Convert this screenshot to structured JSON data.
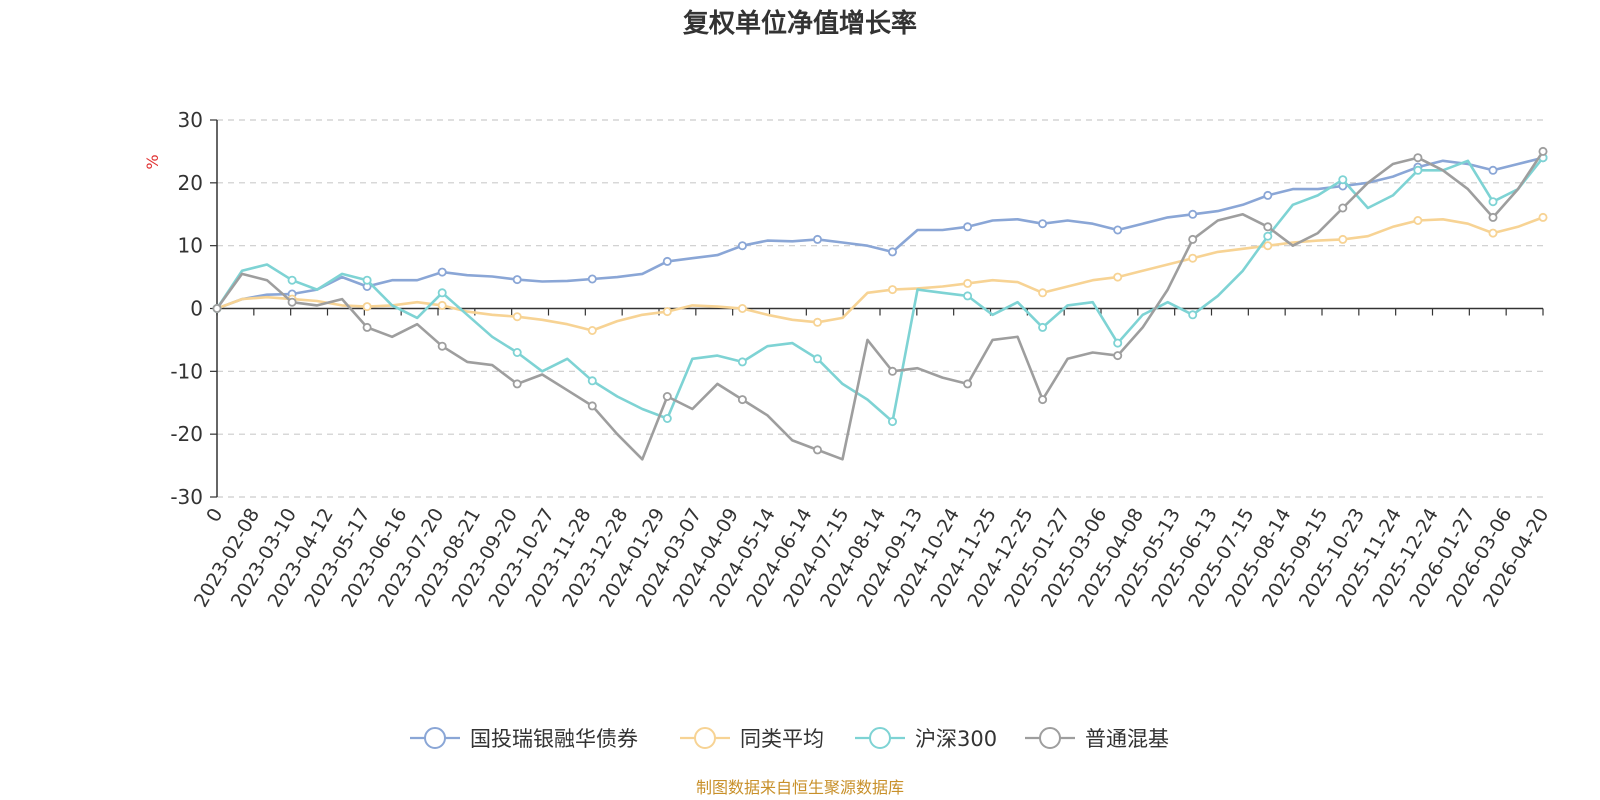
{
  "chart_data": {
    "type": "line",
    "title": "复权单位净值增长率",
    "ylabel": "%",
    "ylim": [
      -30,
      30
    ],
    "yticks": [
      30,
      20,
      10,
      0,
      -10,
      -20,
      -30
    ],
    "x_labels": [
      "0",
      "2023-02-08",
      "2023-03-10",
      "2023-04-12",
      "2023-05-17",
      "2023-06-16",
      "2023-07-20",
      "2023-08-21",
      "2023-09-20",
      "2023-10-27",
      "2023-11-28",
      "2023-12-28",
      "2024-01-29",
      "2024-03-07",
      "2024-04-09",
      "2024-05-14",
      "2024-06-14",
      "2024-07-15",
      "2024-08-14",
      "2024-09-13",
      "2024-10-24",
      "2024-11-25",
      "2024-12-25",
      "2025-01-27",
      "2025-03-06",
      "2025-04-08",
      "2025-05-13",
      "2025-06-13",
      "2025-07-15",
      "2025-08-14",
      "2025-09-15",
      "2025-10-23",
      "2025-11-24",
      "2025-12-24",
      "2026-01-27",
      "2026-03-06",
      "2026-04-20"
    ],
    "grid": true,
    "legend_position": "bottom",
    "series": [
      {
        "name": "国投瑞银融华债券",
        "color": "#8aa6d6",
        "values": [
          0,
          1.5,
          2.2,
          2.3,
          3.0,
          5.0,
          3.5,
          4.5,
          4.5,
          5.8,
          5.3,
          5.1,
          4.6,
          4.3,
          4.4,
          4.7,
          5.0,
          5.5,
          7.5,
          8.0,
          8.5,
          10.0,
          10.8,
          10.7,
          11.0,
          10.5,
          10.0,
          9.0,
          12.5,
          12.5,
          13.0,
          14.0,
          14.2,
          13.5,
          14.0,
          13.5,
          12.5,
          13.5,
          14.5,
          15.0,
          15.5,
          16.5,
          18.0,
          19.0,
          19.0,
          19.5,
          20.0,
          21.0,
          22.5,
          23.5,
          23.0,
          22.0,
          23.0,
          24.0
        ]
      },
      {
        "name": "同类平均",
        "color": "#f7d394",
        "values": [
          0,
          1.5,
          1.8,
          1.5,
          1.2,
          0.5,
          0.3,
          0.5,
          1.0,
          0.5,
          -0.5,
          -1.0,
          -1.3,
          -1.8,
          -2.5,
          -3.5,
          -2.0,
          -1.0,
          -0.5,
          0.5,
          0.3,
          0.0,
          -1.0,
          -1.8,
          -2.2,
          -1.5,
          2.5,
          3.0,
          3.2,
          3.5,
          4.0,
          4.5,
          4.2,
          2.5,
          3.5,
          4.5,
          5.0,
          6.0,
          7.0,
          8.0,
          9.0,
          9.5,
          10.0,
          10.5,
          10.8,
          11.0,
          11.5,
          13.0,
          14.0,
          14.2,
          13.5,
          12.0,
          13.0,
          14.5
        ]
      },
      {
        "name": "沪深300",
        "color": "#7ed3d4",
        "values": [
          0,
          6.0,
          7.0,
          4.5,
          3.0,
          5.5,
          4.5,
          0.5,
          -1.5,
          2.5,
          -1.0,
          -4.5,
          -7.0,
          -10.0,
          -8.0,
          -11.5,
          -14.0,
          -16.0,
          -17.5,
          -8.0,
          -7.5,
          -8.5,
          -6.0,
          -5.5,
          -8.0,
          -12.0,
          -14.5,
          -18.0,
          3.0,
          2.5,
          2.0,
          -1.0,
          1.0,
          -3.0,
          0.5,
          1.0,
          -5.5,
          -1.0,
          1.0,
          -1.0,
          2.0,
          6.0,
          11.5,
          16.5,
          18.0,
          20.5,
          16.0,
          18.0,
          22.0,
          22.0,
          23.5,
          17.0,
          19.0,
          24.0
        ]
      },
      {
        "name": "普通混基",
        "color": "#9e9e9e",
        "values": [
          0,
          5.5,
          4.5,
          1.0,
          0.5,
          1.5,
          -3.0,
          -4.5,
          -2.5,
          -6.0,
          -8.5,
          -9.0,
          -12.0,
          -10.5,
          -13.0,
          -15.5,
          -20.0,
          -24.0,
          -14.0,
          -16.0,
          -12.0,
          -14.5,
          -17.0,
          -21.0,
          -22.5,
          -24.0,
          -5.0,
          -10.0,
          -9.5,
          -11.0,
          -12.0,
          -5.0,
          -4.5,
          -14.5,
          -8.0,
          -7.0,
          -7.5,
          -3.0,
          3.0,
          11.0,
          14.0,
          15.0,
          13.0,
          10.0,
          12.0,
          16.0,
          20.0,
          23.0,
          24.0,
          22.0,
          19.0,
          14.5,
          19.0,
          25.0
        ]
      }
    ]
  },
  "footer": {
    "source": "制图数据来自恒生聚源数据库"
  }
}
